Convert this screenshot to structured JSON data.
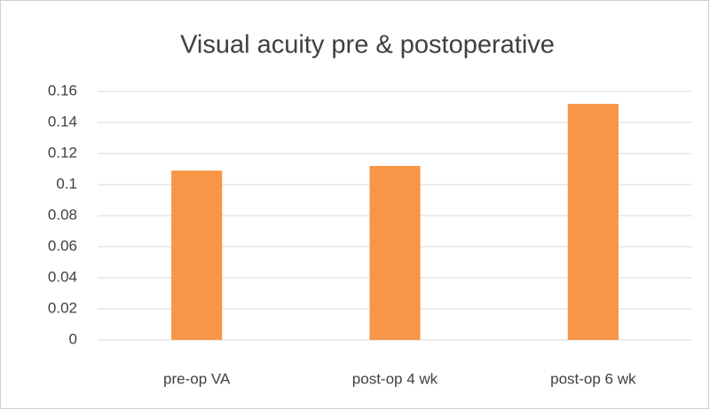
{
  "chart_data": {
    "type": "bar",
    "title": "Visual acuity pre & postoperative",
    "categories": [
      "pre-op VA",
      "post-op 4 wk",
      "post-op 6 wk"
    ],
    "values": [
      0.109,
      0.112,
      0.152
    ],
    "color": "#f79646",
    "ylim": [
      0,
      0.16
    ],
    "yticks": [
      0,
      0.02,
      0.04,
      0.06,
      0.08,
      0.1,
      0.12,
      0.14,
      0.16
    ],
    "grid": true
  }
}
